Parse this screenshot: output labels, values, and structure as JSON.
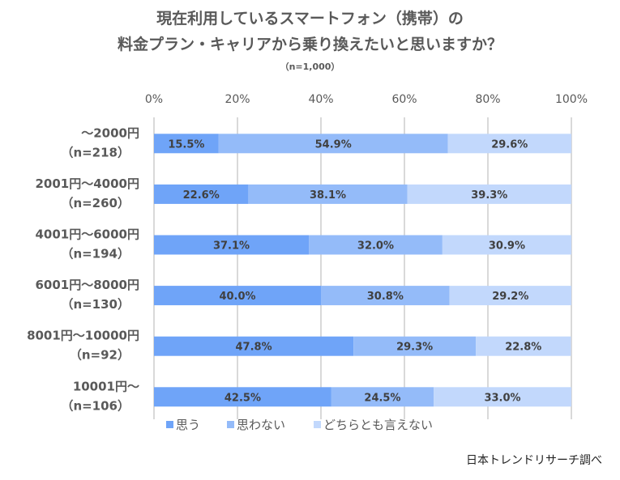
{
  "chart_data": {
    "type": "bar",
    "orientation": "horizontal",
    "stacked": true,
    "title": "現在利用しているスマートフォン（携帯）の",
    "subtitle": "料金プラン・キャリアから乗り換えたいと思いますか？",
    "note": "（n=1,000）",
    "xlabel": "",
    "ylabel": "",
    "xlim": [
      0,
      100
    ],
    "x_ticks": [
      "0%",
      "20%",
      "40%",
      "60%",
      "80%",
      "100%"
    ],
    "grid": true,
    "legend_position": "bottom",
    "categories": [
      {
        "label": "～2000円",
        "n": "（n=218）"
      },
      {
        "label": "2001円～4000円",
        "n": "（n=260）"
      },
      {
        "label": "4001円～6000円",
        "n": "（n=194）"
      },
      {
        "label": "6001円～8000円",
        "n": "（n=130）"
      },
      {
        "label": "8001円～10000円",
        "n": "（n=92）"
      },
      {
        "label": "10001円～",
        "n": "（n=106）"
      }
    ],
    "series": [
      {
        "name": "思う",
        "color": "#6fa4f8",
        "values": [
          15.5,
          22.6,
          37.1,
          40.0,
          47.8,
          42.5
        ]
      },
      {
        "name": "思わない",
        "color": "#94bbf9",
        "values": [
          54.9,
          38.1,
          32.0,
          30.8,
          29.3,
          24.5
        ]
      },
      {
        "name": "どちらとも言えない",
        "color": "#c2d8fc",
        "values": [
          29.6,
          39.3,
          30.9,
          29.2,
          22.8,
          33.0
        ]
      }
    ],
    "label_format": "{v}%",
    "source": "日本トレンドリサーチ調べ"
  }
}
